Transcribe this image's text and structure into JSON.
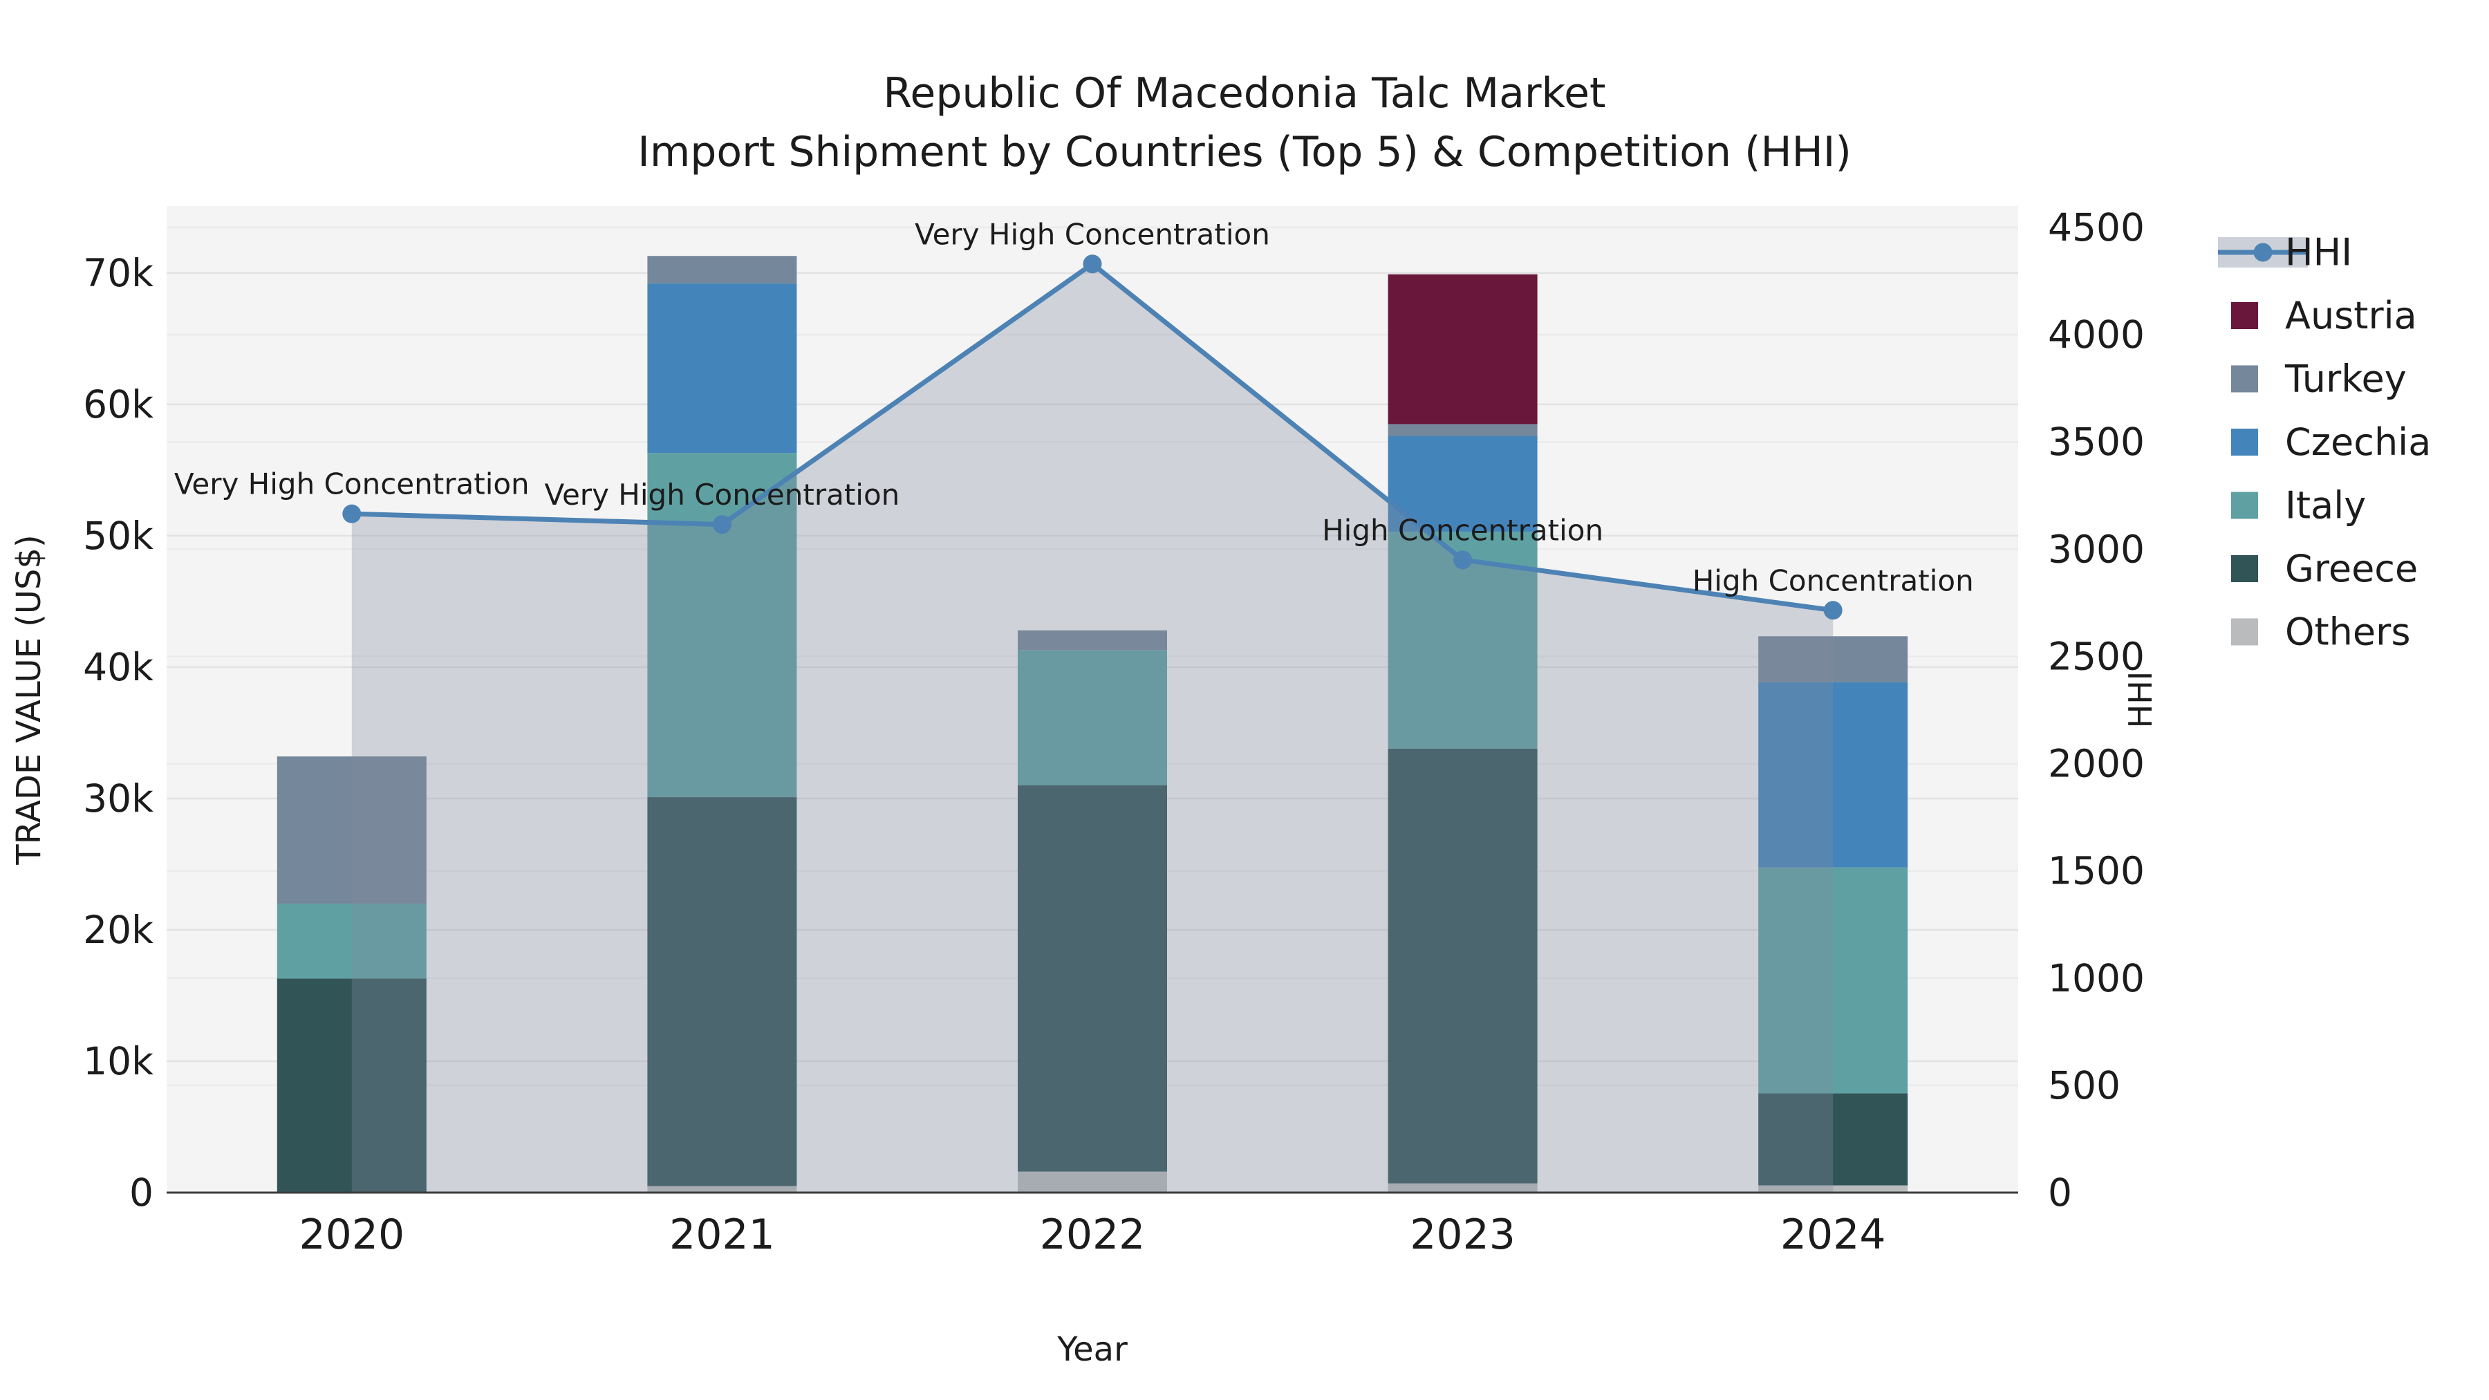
{
  "title": {
    "line1": "Republic Of Macedonia Talc Market",
    "line2": "Import Shipment by Countries (Top 5) & Competition (HHI)"
  },
  "chart_data": {
    "type": "bar",
    "subtype": "stacked-bar-with-line",
    "categories": [
      "2020",
      "2021",
      "2022",
      "2023",
      "2024"
    ],
    "xlabel": "Year",
    "ylabel_left": "TRADE VALUE (US$)",
    "ylabel_right": "HHI",
    "axis_left": {
      "max": 75100,
      "ticks": [
        0,
        10000,
        20000,
        30000,
        40000,
        50000,
        60000,
        70000
      ],
      "tick_labels": [
        "0",
        "10k",
        "20k",
        "30k",
        "40k",
        "50k",
        "60k",
        "70k"
      ]
    },
    "axis_right": {
      "max": 4600,
      "ticks": [
        0,
        500,
        1000,
        1500,
        2000,
        2500,
        3000,
        3500,
        4000,
        4500
      ],
      "tick_labels": [
        "0",
        "500",
        "1000",
        "1500",
        "2000",
        "2500",
        "3000",
        "3500",
        "4000",
        "4500"
      ]
    },
    "series": [
      {
        "name": "Others",
        "color": "#b9bbbc",
        "values": [
          0,
          500,
          1600,
          700,
          550
        ]
      },
      {
        "name": "Greece",
        "color": "#315457",
        "values": [
          16300,
          29600,
          29400,
          33100,
          7000
        ]
      },
      {
        "name": "Italy",
        "color": "#5fa1a2",
        "values": [
          5700,
          26200,
          10300,
          16500,
          17200
        ]
      },
      {
        "name": "Czechia",
        "color": "#4384ba",
        "values": [
          0,
          12900,
          0,
          7300,
          14100
        ]
      },
      {
        "name": "Turkey",
        "color": "#75879a",
        "values": [
          11200,
          2100,
          1500,
          900,
          3500
        ]
      },
      {
        "name": "Austria",
        "color": "#69173a",
        "values": [
          0,
          0,
          0,
          11400,
          0
        ]
      }
    ],
    "line_series": {
      "name": "HHI",
      "values": [
        3165,
        3115,
        4330,
        2950,
        2715
      ],
      "color": "#4d82b4",
      "area_fill": "rgba(130,140,160,0.32)"
    },
    "annotations": [
      "Very High Concentration",
      "Very High Concentration",
      "Very High Concentration",
      "High Concentration",
      "High Concentration"
    ],
    "legend": [
      "HHI",
      "Austria",
      "Turkey",
      "Czechia",
      "Italy",
      "Greece",
      "Others"
    ],
    "grid": "on",
    "legend_position": "right-outside"
  },
  "style": {
    "plot_bg": "#f4f4f4",
    "grid_left": "#e2e2e2",
    "grid_right": "#ebebeb",
    "axis_line": "#3c3c3c",
    "text_color": "#1c1c1c",
    "legend_area_swatch": "#ccd1d9"
  }
}
